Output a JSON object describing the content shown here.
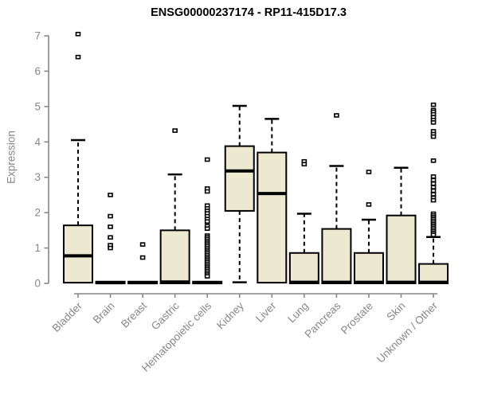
{
  "chart_data": {
    "type": "box",
    "title": "ENSG00000237174 - RP11-415D17.3",
    "ylabel": "Expression",
    "xlabel": "",
    "ylim": [
      0,
      7
    ],
    "yticks": [
      0,
      1,
      2,
      3,
      4,
      5,
      6,
      7
    ],
    "grid": false,
    "legend": false,
    "categories": [
      "Bladder",
      "Brain",
      "Breast",
      "Gastric",
      "Hematopoietic cells",
      "Kidney",
      "Liver",
      "Lung",
      "Pancreas",
      "Prostate",
      "Skin",
      "Unknown / Other"
    ],
    "series": [
      {
        "category": "Bladder",
        "whisker_low": 0.02,
        "q1": 0.02,
        "median": 0.78,
        "q3": 1.64,
        "whisker_high": 4.05,
        "outliers": [
          6.4,
          7.05
        ]
      },
      {
        "category": "Brain",
        "whisker_low": 0,
        "q1": 0,
        "median": 0.02,
        "q3": 0.05,
        "whisker_high": 0.05,
        "outliers": [
          2.5,
          1.9,
          1.6,
          1.3,
          1.08,
          1.0
        ]
      },
      {
        "category": "Breast",
        "whisker_low": 0,
        "q1": 0,
        "median": 0.02,
        "q3": 0.05,
        "whisker_high": 0.05,
        "outliers": [
          1.1,
          0.73
        ]
      },
      {
        "category": "Gastric",
        "whisker_low": 0,
        "q1": 0,
        "median": 0.04,
        "q3": 1.5,
        "whisker_high": 3.08,
        "outliers": [
          4.32
        ]
      },
      {
        "category": "Hematopoietic cells",
        "whisker_low": 0,
        "q1": 0,
        "median": 0.02,
        "q3": 0.05,
        "whisker_high": 0.05,
        "outliers": [
          3.5,
          2.68,
          2.6,
          2.2,
          2.12,
          2.05,
          1.98,
          1.9,
          1.82,
          1.75,
          1.62,
          1.55,
          1.35,
          1.3,
          1.25,
          1.2,
          1.15,
          1.1,
          1.05,
          1.0,
          0.95,
          0.9,
          0.85,
          0.8,
          0.75,
          0.7,
          0.65,
          0.6,
          0.55,
          0.5,
          0.45,
          0.4,
          0.35,
          0.3,
          0.25,
          0.2
        ]
      },
      {
        "category": "Kidney",
        "whisker_low": 0.03,
        "q1": 2.05,
        "median": 3.18,
        "q3": 3.88,
        "whisker_high": 5.02,
        "outliers": []
      },
      {
        "category": "Liver",
        "whisker_low": 0.02,
        "q1": 0.02,
        "median": 2.54,
        "q3": 3.7,
        "whisker_high": 4.65,
        "outliers": []
      },
      {
        "category": "Lung",
        "whisker_low": 0,
        "q1": 0,
        "median": 0.03,
        "q3": 0.86,
        "whisker_high": 1.97,
        "outliers": [
          3.45,
          3.37
        ]
      },
      {
        "category": "Pancreas",
        "whisker_low": 0,
        "q1": 0,
        "median": 0.03,
        "q3": 1.54,
        "whisker_high": 3.32,
        "outliers": [
          4.75
        ]
      },
      {
        "category": "Prostate",
        "whisker_low": 0,
        "q1": 0,
        "median": 0.03,
        "q3": 0.86,
        "whisker_high": 1.8,
        "outliers": [
          3.15,
          2.23
        ]
      },
      {
        "category": "Skin",
        "whisker_low": 0,
        "q1": 0,
        "median": 0.03,
        "q3": 1.92,
        "whisker_high": 3.27,
        "outliers": []
      },
      {
        "category": "Unknown / Other",
        "whisker_low": 0,
        "q1": 0,
        "median": 0.03,
        "q3": 0.55,
        "whisker_high": 1.31,
        "outliers": [
          5.05,
          4.9,
          4.85,
          4.78,
          4.7,
          4.62,
          4.55,
          4.3,
          4.22,
          4.15,
          3.47,
          3.02,
          2.92,
          2.82,
          2.72,
          2.62,
          2.52,
          2.42,
          2.35,
          1.97,
          1.92,
          1.87,
          1.82,
          1.77,
          1.72,
          1.67,
          1.62,
          1.57,
          1.52,
          1.47,
          1.42,
          1.37
        ]
      }
    ],
    "colors": {
      "box_fill": "#EDE8D0",
      "box_border": "#000000",
      "median": "#000000",
      "whisker": "#000000",
      "outlier_border": "#000000",
      "outlier_fill": "#FFFFFF",
      "axis": "#878787",
      "tick_label": "#878787",
      "title": "#000000",
      "background": "#FFFFFF"
    }
  }
}
